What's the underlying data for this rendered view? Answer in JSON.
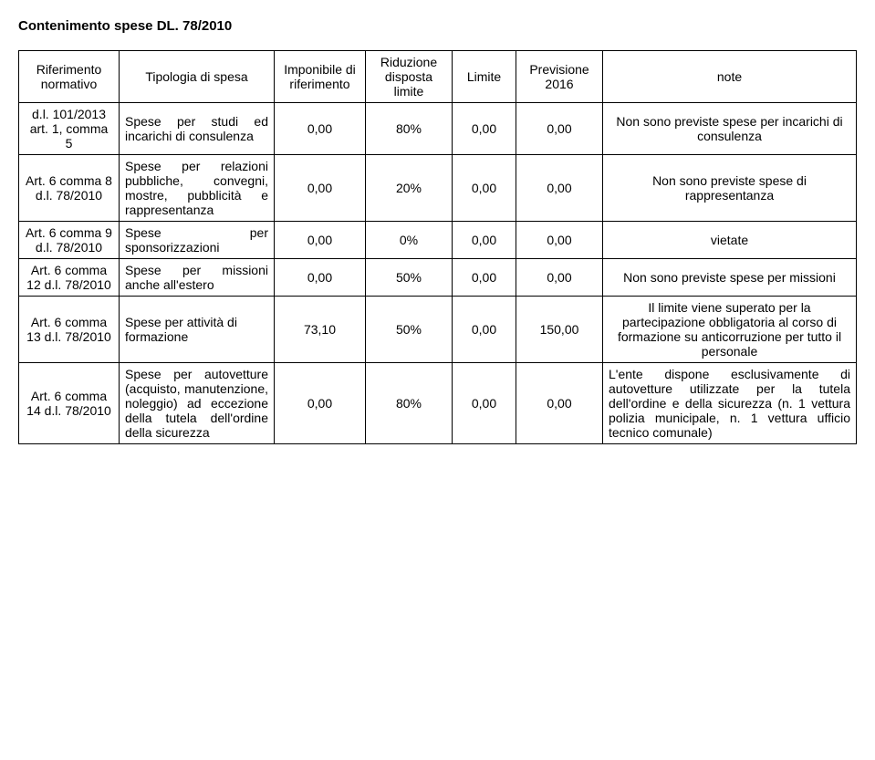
{
  "title": "Contenimento spese DL. 78/2010",
  "headers": {
    "col1": "Riferimento normativo",
    "col2": "Tipologia di spesa",
    "col3": "Imponibile di riferimento",
    "col4": "Riduzione disposta limite",
    "col5": "Limite",
    "col6": "Previsione 2016",
    "col7": "note"
  },
  "rows": [
    {
      "ref": "d.l. 101/2013 art. 1, comma 5",
      "tip": "Spese per studi ed incarichi di consulenza",
      "imp": "0,00",
      "rid": "80%",
      "lim": "0,00",
      "prev": "0,00",
      "note": "Non sono previste spese per incarichi di consulenza",
      "noteAlign": "center"
    },
    {
      "ref": "Art. 6 comma 8 d.l. 78/2010",
      "tip": "Spese per relazioni pubbliche, convegni, mostre, pubblicità e rappresentanza",
      "imp": "0,00",
      "rid": "20%",
      "lim": "0,00",
      "prev": "0,00",
      "note": "Non sono previste spese di rappresentanza",
      "noteAlign": "center"
    },
    {
      "ref": "Art. 6 comma 9 d.l. 78/2010",
      "tip": "Spese per sponsorizzazioni",
      "imp": "0,00",
      "rid": "0%",
      "lim": "0,00",
      "prev": "0,00",
      "note": "vietate",
      "noteAlign": "center"
    },
    {
      "ref": "Art. 6 comma 12 d.l. 78/2010",
      "tip": "Spese per missioni anche all'estero",
      "imp": "0,00",
      "rid": "50%",
      "lim": "0,00",
      "prev": "0,00",
      "note": "Non sono previste spese per missioni",
      "noteAlign": "center"
    },
    {
      "ref": "Art. 6 comma 13 d.l. 78/2010",
      "tip": "Spese per attività di formazione",
      "imp": "73,10",
      "rid": "50%",
      "lim": "0,00",
      "prev": "150,00",
      "note": "Il limite viene superato per la partecipazione obbligatoria al corso di formazione su anticorruzione per tutto il personale",
      "noteAlign": "center"
    },
    {
      "ref": "Art. 6 comma 14 d.l. 78/2010",
      "tip": "Spese per autovetture (acquisto, manutenzione, noleggio) ad eccezione della tutela dell'ordine della sicurezza",
      "imp": "0,00",
      "rid": "80%",
      "lim": "0,00",
      "prev": "0,00",
      "note": "L'ente dispone esclusivamente di autovetture utilizzate per la tutela dell'ordine e della sicurezza (n. 1 vettura polizia municipale, n. 1 vettura ufficio tecnico comunale)",
      "noteAlign": "justify"
    }
  ]
}
